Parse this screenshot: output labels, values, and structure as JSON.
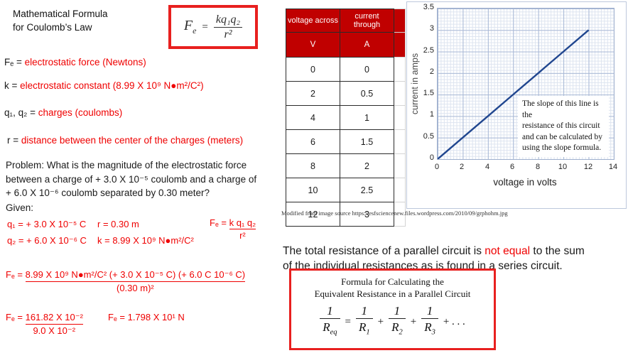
{
  "slide": {
    "title": "Mathematical Formula\nfor Coulomb’s Law",
    "coulomb_formula": {
      "lhs_base": "F",
      "lhs_sub": "e",
      "equals": "=",
      "numerator": "kq₁q₂",
      "denominator": "r²"
    },
    "definitions": [
      {
        "term": "Fₑ = ",
        "description": "electrostatic force (Newtons)"
      },
      {
        "term": "k = ",
        "description": "electrostatic constant (8.99 X 10⁹  N●m²/C²)"
      },
      {
        "term": "q₁, q₂ = ",
        "description": "charges (coulombs)"
      },
      {
        "term": "r = ",
        "description": "distance between the center of the charges (meters)"
      }
    ],
    "problem": "Problem: What is the magnitude of the electrostatic force\nbetween a charge of + 3.0 X 10⁻⁵ coulomb and a charge of\n+ 6.0 X 10⁻⁶ coulomb separated by 0.30  meter?",
    "given_label": "Given:",
    "given": {
      "q1": "q₁ = + 3.0 X 10⁻⁵ C",
      "q2": "q₂ = + 6.0 X 10⁻⁶ C",
      "r": "r = 0.30  m",
      "k": "k = 8.99  X 10⁹ N●m²/C²",
      "fe_lhs": "Fₑ = ",
      "fe_numerator": "k q₁ q₂",
      "fe_denominator": "r²"
    },
    "solution": {
      "step1_lhs": "Fₑ = ",
      "step1_numerator": "8.99  X 10⁹  N●m²/C² (+ 3.0 X 10⁻⁵ C)  (+ 6.0 C 10⁻⁶ C)",
      "step1_denominator": "(0.30 m)²",
      "step2_lhs": "Fₑ = ",
      "step2_numerator": "161.82  X 10⁻²",
      "step2_denominator": "9.0 X 10⁻²",
      "final": "Fₑ = 1.798  X 10¹  N"
    }
  },
  "data_table": {
    "col1_header": "voltage across",
    "col2_header": "current through",
    "col1_unit": "V",
    "col2_unit": "A",
    "rows": [
      [
        "0",
        "0"
      ],
      [
        "2",
        "0.5"
      ],
      [
        "4",
        "1"
      ],
      [
        "6",
        "1.5"
      ],
      [
        "8",
        "2"
      ],
      [
        "10",
        "2.5"
      ],
      [
        "12",
        "3"
      ]
    ],
    "caption": "Modified from image source  https://esfsciencenew.files.wordpress.com/2010/09/grphohm.jpg"
  },
  "chart_data": {
    "type": "line",
    "x": [
      0,
      2,
      4,
      6,
      8,
      10,
      12
    ],
    "y": [
      0,
      0.5,
      1,
      1.5,
      2,
      2.5,
      3
    ],
    "title": "",
    "xlabel": "voltage in volts",
    "ylabel": "current in amps",
    "xlim": [
      0,
      14
    ],
    "ylim": [
      0,
      3.5
    ],
    "x_tick_labels": [
      "0",
      "2",
      "4",
      "6",
      "8",
      "10",
      "12",
      "14"
    ],
    "y_tick_labels": [
      "3.5",
      "3",
      "2.5",
      "2",
      "1.5",
      "1",
      "0.5",
      "0"
    ],
    "grid": "on",
    "legend": "none",
    "line_color": "#20468f",
    "annotation": "The slope of this line is the\nresistance of this circuit\nand can be calculated by\nusing the slope formula."
  },
  "parallel_section": {
    "text_part1": "The total resistance of a parallel circuit is ",
    "text_highlight": "not equal",
    "text_part2": " to the sum\nof the individual resistances as is found in a series circuit.",
    "box_title": "Formula for Calculating the\nEquivalent Resistance in a Parallel Circuit",
    "frac_numerator": "1",
    "r_base": "R",
    "r_subs": [
      "eq",
      "1",
      "2",
      "3"
    ],
    "equals": "=",
    "plus": "+",
    "dots": "+ . . ."
  },
  "colors": {
    "accent_red_text": "#ef0000",
    "box_border_red": "#e8201f",
    "table_header_red": "#c00000",
    "line_blue": "#20468f"
  }
}
